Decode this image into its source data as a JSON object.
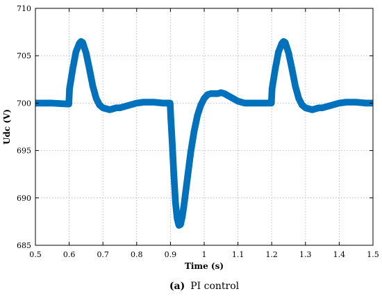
{
  "chart_data": {
    "type": "line",
    "xlabel": "Time (s)",
    "ylabel": "Udc (V)",
    "xlim": [
      0.5,
      1.5
    ],
    "ylim": [
      685,
      710
    ],
    "x_ticks": [
      "0.5",
      "0.6",
      "0.7",
      "0.8",
      "0.9",
      "1",
      "1.1",
      "1.2",
      "1.3",
      "1.4",
      "1.5"
    ],
    "y_ticks": [
      "685",
      "690",
      "695",
      "700",
      "705",
      "710"
    ],
    "grid": true,
    "ripple_band_V": 0.6,
    "series": [
      {
        "name": "",
        "color": "#0072BD",
        "x": [
          0.5,
          0.55,
          0.599,
          0.601,
          0.61,
          0.62,
          0.63,
          0.635,
          0.64,
          0.65,
          0.66,
          0.67,
          0.68,
          0.69,
          0.7,
          0.71,
          0.72,
          0.73,
          0.74,
          0.75,
          0.76,
          0.77,
          0.78,
          0.8,
          0.82,
          0.85,
          0.88,
          0.899,
          0.901,
          0.905,
          0.91,
          0.915,
          0.92,
          0.925,
          0.93,
          0.935,
          0.94,
          0.95,
          0.96,
          0.97,
          0.98,
          0.99,
          1.0,
          1.01,
          1.02,
          1.03,
          1.04,
          1.05,
          1.06,
          1.07,
          1.08,
          1.09,
          1.1,
          1.12,
          1.15,
          1.18,
          1.199,
          1.201,
          1.21,
          1.22,
          1.23,
          1.235,
          1.24,
          1.25,
          1.26,
          1.27,
          1.28,
          1.29,
          1.3,
          1.31,
          1.32,
          1.33,
          1.34,
          1.35,
          1.36,
          1.37,
          1.38,
          1.4,
          1.42,
          1.45,
          1.48,
          1.5
        ],
        "y": [
          700.0,
          700.0,
          699.9,
          701.5,
          703.5,
          705.4,
          706.3,
          706.5,
          706.4,
          705.3,
          703.6,
          701.8,
          700.5,
          699.8,
          699.5,
          699.4,
          699.3,
          699.4,
          699.5,
          699.5,
          699.6,
          699.7,
          699.8,
          700.0,
          700.1,
          700.1,
          700.0,
          700.0,
          698.5,
          696.0,
          692.5,
          689.5,
          687.8,
          687.1,
          687.2,
          688.0,
          689.2,
          692.0,
          694.8,
          697.0,
          698.7,
          699.8,
          700.5,
          700.9,
          701.0,
          701.0,
          701.0,
          701.1,
          701.0,
          700.8,
          700.6,
          700.4,
          700.2,
          700.0,
          700.0,
          700.0,
          700.0,
          701.5,
          703.5,
          705.4,
          706.3,
          706.5,
          706.4,
          705.3,
          703.6,
          701.8,
          700.5,
          699.8,
          699.5,
          699.4,
          699.3,
          699.4,
          699.5,
          699.5,
          699.6,
          699.7,
          699.8,
          700.0,
          700.1,
          700.1,
          700.0,
          700.0
        ]
      }
    ]
  },
  "caption": {
    "label": "(a)",
    "text": "PI control"
  }
}
